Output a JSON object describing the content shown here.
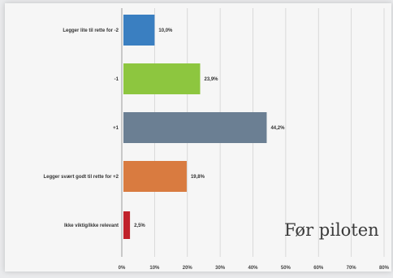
{
  "chart_data": {
    "type": "bar",
    "orientation": "horizontal",
    "categories": [
      "Legger lite til rette for -2",
      "-1",
      "+1",
      "Legger svært godt til rette for +2",
      "Ikke viktig/ikke relevant"
    ],
    "values": [
      10.0,
      23.9,
      44.2,
      19.8,
      2.5
    ],
    "value_labels": [
      "10,0%",
      "23,9%",
      "44,2%",
      "19,8%",
      "2,5%"
    ],
    "bar_colors": [
      "#3a7fc1",
      "#8dc63f",
      "#6b7f93",
      "#d97b40",
      "#c0212a"
    ],
    "xlim": [
      0,
      80
    ],
    "x_ticks": [
      "0%",
      "10%",
      "20%",
      "30%",
      "40%",
      "50%",
      "60%",
      "70%",
      "80%"
    ],
    "grid": true,
    "annotation": "Før piloten"
  }
}
